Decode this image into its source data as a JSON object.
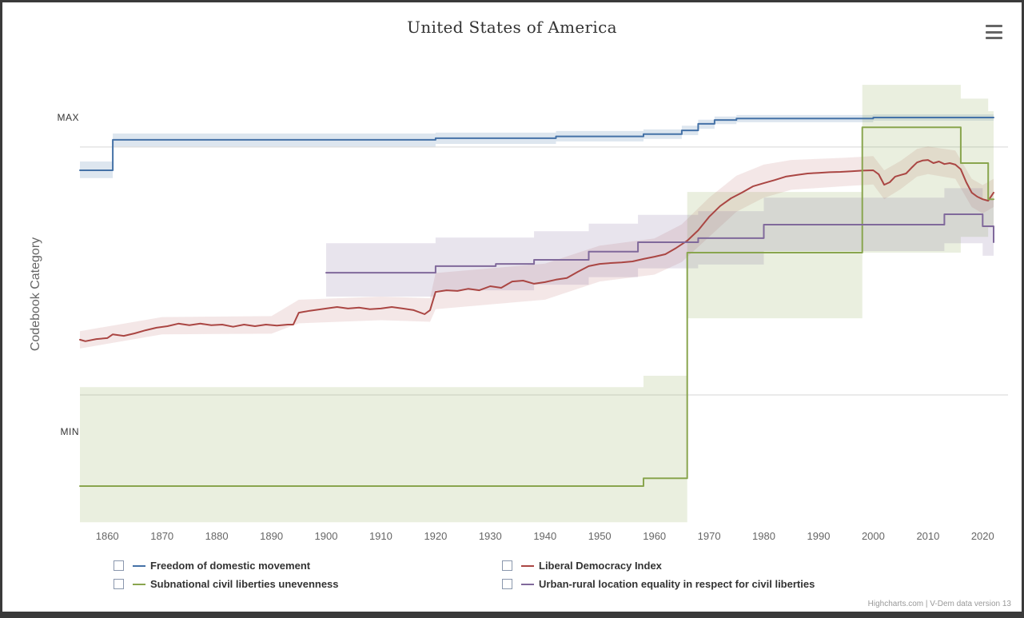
{
  "title": "United States of America",
  "y_axis": {
    "title": "Codebook Category"
  },
  "credits": "Highcharts.com | V-Dem data version 13",
  "legend": [
    {
      "label": "Freedom of domestic movement",
      "color": "#4572A7",
      "checked": false
    },
    {
      "label": "Liberal Democracy Index",
      "color": "#AA4643",
      "checked": false
    },
    {
      "label": "Subnational civil liberties unevenness",
      "color": "#89A54E",
      "checked": false
    },
    {
      "label": "Urban-rural location equality in respect for civil liberties",
      "color": "#80699B",
      "checked": false
    }
  ],
  "chart_data": {
    "type": "line",
    "title": "United States of America",
    "ylabel": "Codebook Category",
    "xlabel": "",
    "xlim": [
      1855,
      2022
    ],
    "ylim": [
      -0.35,
      1.15
    ],
    "x_ticks": [
      1860,
      1870,
      1880,
      1890,
      1900,
      1910,
      1920,
      1930,
      1940,
      1950,
      1960,
      1970,
      1980,
      1990,
      2000,
      2010,
      2020
    ],
    "y_ticks": [
      {
        "label": "MAX",
        "value": 1.0
      },
      {
        "label": "MIN",
        "value": 0.0
      }
    ],
    "gridlines_y": [
      0.906,
      0.117
    ],
    "grid": "horizontal-only",
    "legend_position": "bottom",
    "series": [
      {
        "name": "Freedom of domestic movement",
        "color": "#4572A7",
        "band_color": "rgba(69,114,167,0.18)",
        "interp": "step",
        "points": [
          [
            1855,
            0.832
          ],
          [
            1861,
            0.929
          ],
          [
            1920,
            0.934
          ],
          [
            1942,
            0.94
          ],
          [
            1958,
            0.947
          ],
          [
            1965,
            0.959
          ],
          [
            1968,
            0.98
          ],
          [
            1971,
            0.992
          ],
          [
            1975,
            0.997
          ],
          [
            2000,
            1.0
          ],
          [
            2022,
            1.0
          ]
        ],
        "band": [
          [
            1855,
            0.807,
            0.86
          ],
          [
            1861,
            0.908,
            0.949
          ],
          [
            1920,
            0.916,
            0.952
          ],
          [
            1942,
            0.924,
            0.957
          ],
          [
            1958,
            0.932,
            0.962
          ],
          [
            1965,
            0.944,
            0.974
          ],
          [
            1968,
            0.964,
            0.993
          ],
          [
            1971,
            0.979,
            1.003
          ],
          [
            1975,
            0.985,
            1.008
          ],
          [
            2000,
            0.99,
            1.01
          ],
          [
            2022,
            0.99,
            1.01
          ]
        ]
      },
      {
        "name": "Liberal Democracy Index",
        "color": "#AA4643",
        "band_color": "rgba(170,70,67,0.13)",
        "interp": "linear",
        "points": [
          [
            1855,
            0.293
          ],
          [
            1856,
            0.288
          ],
          [
            1858,
            0.295
          ],
          [
            1860,
            0.298
          ],
          [
            1861,
            0.31
          ],
          [
            1863,
            0.305
          ],
          [
            1865,
            0.313
          ],
          [
            1867,
            0.323
          ],
          [
            1869,
            0.331
          ],
          [
            1871,
            0.336
          ],
          [
            1873,
            0.344
          ],
          [
            1875,
            0.339
          ],
          [
            1877,
            0.344
          ],
          [
            1879,
            0.339
          ],
          [
            1881,
            0.341
          ],
          [
            1883,
            0.334
          ],
          [
            1885,
            0.341
          ],
          [
            1887,
            0.336
          ],
          [
            1889,
            0.341
          ],
          [
            1891,
            0.338
          ],
          [
            1893,
            0.341
          ],
          [
            1894,
            0.341
          ],
          [
            1895,
            0.379
          ],
          [
            1897,
            0.385
          ],
          [
            1900,
            0.392
          ],
          [
            1902,
            0.397
          ],
          [
            1904,
            0.392
          ],
          [
            1906,
            0.395
          ],
          [
            1908,
            0.39
          ],
          [
            1910,
            0.392
          ],
          [
            1912,
            0.397
          ],
          [
            1914,
            0.392
          ],
          [
            1916,
            0.387
          ],
          [
            1918,
            0.374
          ],
          [
            1919,
            0.387
          ],
          [
            1920,
            0.445
          ],
          [
            1922,
            0.45
          ],
          [
            1924,
            0.448
          ],
          [
            1926,
            0.455
          ],
          [
            1928,
            0.45
          ],
          [
            1930,
            0.463
          ],
          [
            1932,
            0.458
          ],
          [
            1934,
            0.478
          ],
          [
            1936,
            0.481
          ],
          [
            1938,
            0.471
          ],
          [
            1940,
            0.476
          ],
          [
            1942,
            0.484
          ],
          [
            1944,
            0.489
          ],
          [
            1946,
            0.509
          ],
          [
            1948,
            0.527
          ],
          [
            1950,
            0.534
          ],
          [
            1952,
            0.537
          ],
          [
            1954,
            0.539
          ],
          [
            1956,
            0.542
          ],
          [
            1958,
            0.55
          ],
          [
            1960,
            0.557
          ],
          [
            1962,
            0.565
          ],
          [
            1964,
            0.585
          ],
          [
            1966,
            0.608
          ],
          [
            1968,
            0.641
          ],
          [
            1970,
            0.684
          ],
          [
            1972,
            0.718
          ],
          [
            1974,
            0.743
          ],
          [
            1976,
            0.761
          ],
          [
            1978,
            0.781
          ],
          [
            1980,
            0.791
          ],
          [
            1982,
            0.801
          ],
          [
            1984,
            0.812
          ],
          [
            1986,
            0.817
          ],
          [
            1988,
            0.822
          ],
          [
            1990,
            0.824
          ],
          [
            1992,
            0.826
          ],
          [
            1994,
            0.827
          ],
          [
            1996,
            0.829
          ],
          [
            1998,
            0.831
          ],
          [
            2000,
            0.832
          ],
          [
            2001,
            0.819
          ],
          [
            2002,
            0.786
          ],
          [
            2003,
            0.794
          ],
          [
            2004,
            0.812
          ],
          [
            2005,
            0.817
          ],
          [
            2006,
            0.822
          ],
          [
            2007,
            0.84
          ],
          [
            2008,
            0.857
          ],
          [
            2009,
            0.863
          ],
          [
            2010,
            0.865
          ],
          [
            2011,
            0.855
          ],
          [
            2012,
            0.86
          ],
          [
            2013,
            0.852
          ],
          [
            2014,
            0.855
          ],
          [
            2015,
            0.85
          ],
          [
            2016,
            0.835
          ],
          [
            2017,
            0.794
          ],
          [
            2018,
            0.761
          ],
          [
            2019,
            0.748
          ],
          [
            2020,
            0.74
          ],
          [
            2021,
            0.735
          ],
          [
            2022,
            0.761
          ]
        ],
        "band": [
          [
            1855,
            0.265,
            0.32
          ],
          [
            1870,
            0.31,
            0.365
          ],
          [
            1890,
            0.312,
            0.368
          ],
          [
            1895,
            0.345,
            0.42
          ],
          [
            1910,
            0.355,
            0.43
          ],
          [
            1919,
            0.35,
            0.425
          ],
          [
            1920,
            0.39,
            0.505
          ],
          [
            1930,
            0.405,
            0.52
          ],
          [
            1940,
            0.42,
            0.535
          ],
          [
            1950,
            0.478,
            0.592
          ],
          [
            1960,
            0.5,
            0.615
          ],
          [
            1965,
            0.54,
            0.66
          ],
          [
            1970,
            0.62,
            0.745
          ],
          [
            1975,
            0.7,
            0.815
          ],
          [
            1980,
            0.745,
            0.85
          ],
          [
            1985,
            0.77,
            0.865
          ],
          [
            1995,
            0.782,
            0.872
          ],
          [
            2000,
            0.787,
            0.877
          ],
          [
            2002,
            0.74,
            0.832
          ],
          [
            2005,
            0.772,
            0.862
          ],
          [
            2008,
            0.812,
            0.9
          ],
          [
            2010,
            0.82,
            0.908
          ],
          [
            2015,
            0.805,
            0.895
          ],
          [
            2018,
            0.715,
            0.805
          ],
          [
            2020,
            0.695,
            0.785
          ],
          [
            2022,
            0.715,
            0.805
          ]
        ]
      },
      {
        "name": "Subnational civil liberties unevenness",
        "color": "#89A54E",
        "band_color": "rgba(137,165,78,0.18)",
        "interp": "step",
        "points": [
          [
            1855,
            -0.173
          ],
          [
            1958,
            -0.148
          ],
          [
            1966,
            0.57
          ],
          [
            1998,
            0.969
          ],
          [
            2016,
            0.855
          ],
          [
            2021,
            0.74
          ],
          [
            2022,
            0.74
          ]
        ],
        "band": [
          [
            1855,
            -0.288,
            0.142
          ],
          [
            1958,
            -0.288,
            0.178
          ],
          [
            1966,
            0.361,
            0.763
          ],
          [
            1998,
            0.57,
            1.104
          ],
          [
            2014,
            0.57,
            1.104
          ],
          [
            2016,
            0.62,
            1.06
          ],
          [
            2021,
            0.65,
            1.02
          ],
          [
            2022,
            0.65,
            1.02
          ]
        ]
      },
      {
        "name": "Urban-rural location equality in respect for civil liberties",
        "color": "#80699B",
        "band_color": "rgba(128,105,155,0.18)",
        "interp": "step",
        "points": [
          [
            1900,
            0.506
          ],
          [
            1920,
            0.527
          ],
          [
            1931,
            0.534
          ],
          [
            1938,
            0.547
          ],
          [
            1948,
            0.573
          ],
          [
            1957,
            0.603
          ],
          [
            1968,
            0.616
          ],
          [
            1980,
            0.659
          ],
          [
            2013,
            0.692
          ],
          [
            2020,
            0.654
          ],
          [
            2022,
            0.603
          ]
        ],
        "band": [
          [
            1900,
            0.43,
            0.6
          ],
          [
            1920,
            0.45,
            0.618
          ],
          [
            1938,
            0.468,
            0.638
          ],
          [
            1948,
            0.492,
            0.662
          ],
          [
            1957,
            0.52,
            0.69
          ],
          [
            1968,
            0.532,
            0.702
          ],
          [
            1980,
            0.575,
            0.745
          ],
          [
            2013,
            0.6,
            0.775
          ],
          [
            2020,
            0.56,
            0.74
          ],
          [
            2022,
            0.5,
            0.7
          ]
        ]
      }
    ]
  }
}
